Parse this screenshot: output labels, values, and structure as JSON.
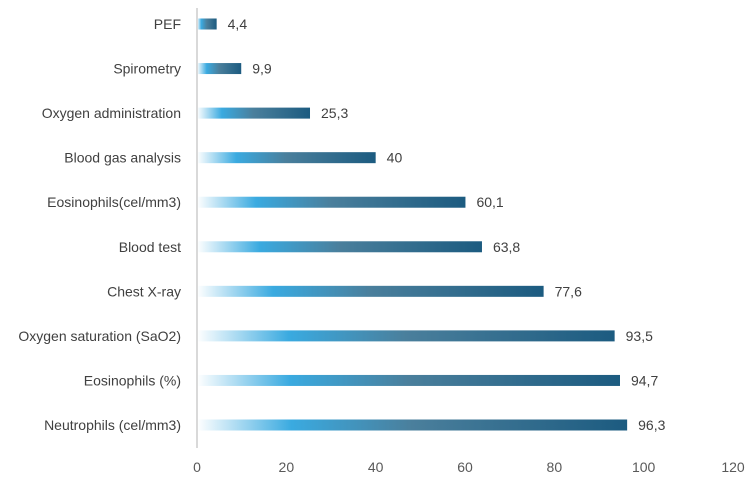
{
  "chart_data": {
    "type": "bar",
    "orientation": "horizontal",
    "title": "",
    "xlabel": "",
    "ylabel": "",
    "xlim": [
      0,
      120
    ],
    "xticks": [
      0,
      20,
      40,
      60,
      80,
      100,
      120
    ],
    "grid": false,
    "legend": "none",
    "categories": [
      "PEF",
      "Spirometry",
      "Oxygen administration",
      "Blood gas analysis",
      "Eosinophils(cel/mm3)",
      "Blood test",
      "Chest X-ray",
      "Oxygen saturation (SaO2)",
      "Eosinophils (%)",
      "Neutrophils (cel/mm3)"
    ],
    "values": [
      4.4,
      9.9,
      25.3,
      40,
      60.1,
      63.8,
      77.6,
      93.5,
      94.7,
      96.3
    ],
    "value_labels": [
      "4,4",
      "9,9",
      "25,3",
      "40",
      "60,1",
      "63,8",
      "77,6",
      "93,5",
      "94,7",
      "96,3"
    ],
    "tick_labels": [
      "0",
      "20",
      "40",
      "60",
      "80",
      "100",
      "120"
    ],
    "colors": {
      "bar_start": "#ffffff",
      "bar_light": "#3aaae0",
      "bar_mid": "#4a7f9c",
      "bar_end": "#1c5b80",
      "axis": "#d9d9d9",
      "text": "#404040"
    }
  }
}
